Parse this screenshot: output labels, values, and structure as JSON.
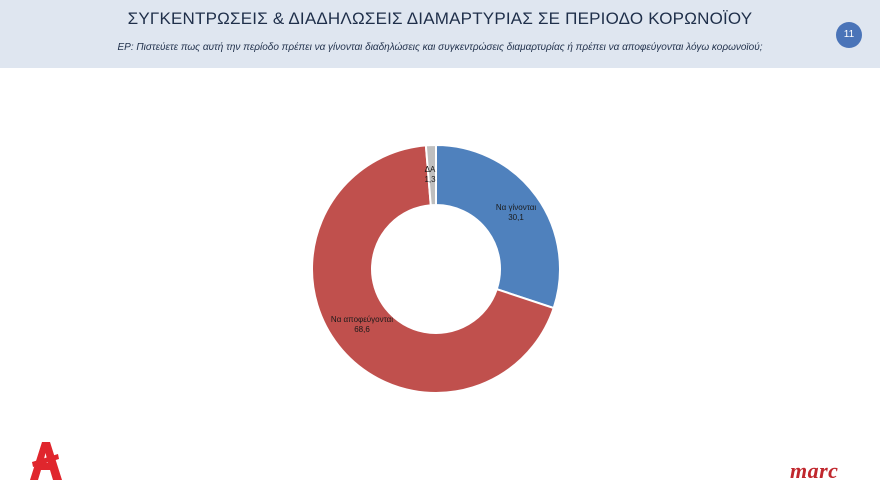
{
  "header": {
    "title": "ΣΥΓΚΕΝΤΡΩΣΕΙΣ & ΔΙΑΔΗΛΩΣΕΙΣ ΔΙΑΜΑΡΤΥΡΙΑΣ ΣΕ ΠΕΡΙΟΔΟ ΚΟΡΩΝΟΪΟΥ",
    "question": "ΕΡ: Πιστεύετε πως αυτή την περίοδο πρέπει να γίνονται διαδηλώσεις και συγκεντρώσεις διαμαρτυρίας ή πρέπει να αποφεύγονται λόγω κορωνοϊού;",
    "page_number": "11"
  },
  "chart_data": {
    "type": "pie",
    "donut": true,
    "slices": [
      {
        "label": "Να γίνονται",
        "value": 30.1,
        "value_label": "30,1",
        "color": "#4f81bd"
      },
      {
        "label": "Να αποφεύγονται",
        "value": 68.6,
        "value_label": "68,6",
        "color": "#c0504d"
      },
      {
        "label": "ΔΑ",
        "value": 1.3,
        "value_label": "1,3",
        "color": "#bfbfbf"
      }
    ]
  },
  "branding": {
    "left_logo_icon": "alpha-tv-logo-icon",
    "right_logo_text": "marc",
    "logo_color": "#e0262d",
    "brand_color": "#c0272d"
  }
}
